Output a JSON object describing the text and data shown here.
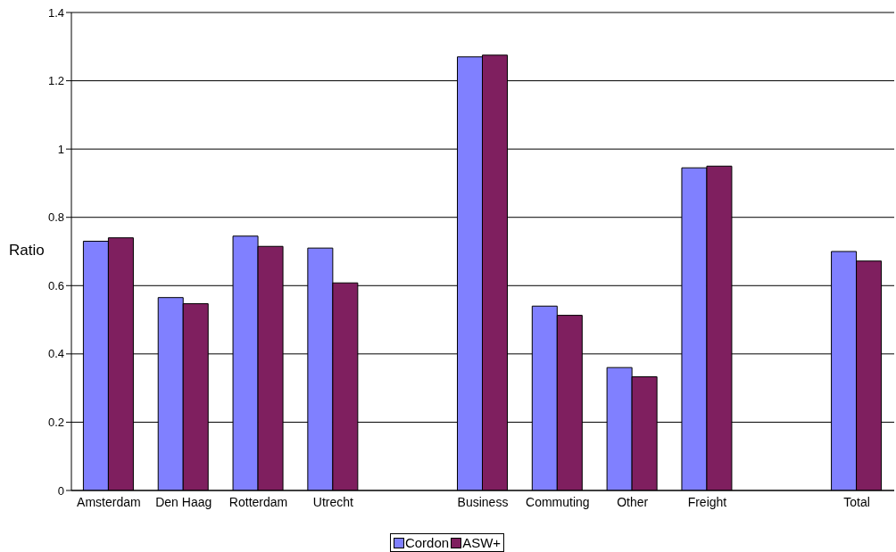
{
  "chart_data": {
    "type": "bar",
    "ylabel": "Ratio",
    "categories": [
      "Amsterdam",
      "Den Haag",
      "Rotterdam",
      "Utrecht",
      null,
      "Business",
      "Commuting",
      "Other",
      "Freight",
      null,
      "Total"
    ],
    "series": [
      {
        "name": "Cordon",
        "color": "#8080ff",
        "values": [
          0.73,
          0.565,
          0.745,
          0.71,
          null,
          1.27,
          0.54,
          0.36,
          0.945,
          null,
          0.7
        ]
      },
      {
        "name": "ASW+",
        "color": "#7f1f5f",
        "values": [
          0.74,
          0.547,
          0.715,
          0.608,
          null,
          1.275,
          0.513,
          0.333,
          0.95,
          null,
          0.672
        ]
      }
    ],
    "ylim": [
      0,
      1.4
    ],
    "yticks": [
      0,
      0.2,
      0.4,
      0.6,
      0.8,
      1,
      1.2,
      1.4
    ],
    "grid": "y",
    "legend": "bottom"
  }
}
